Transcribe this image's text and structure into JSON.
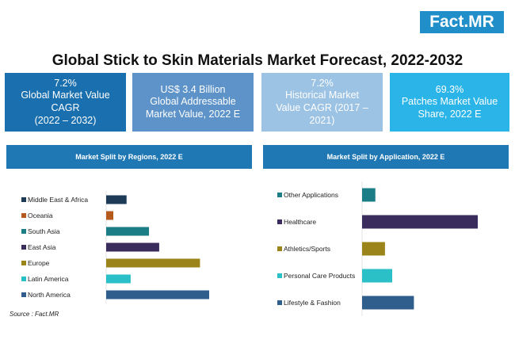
{
  "logo": "Fact.MR",
  "title": "Global Stick to Skin Materials Market Forecast, 2022-2032",
  "kpis": [
    {
      "value": "7.2%",
      "line1": "Global Market Value",
      "line2": "CAGR",
      "line3": "(2022 – 2032)",
      "color": "#1a6fae"
    },
    {
      "value": "US$ 3.4 Billion",
      "line1": "Global Addressable",
      "line2": "Market Value, 2022 E",
      "line3": "",
      "color": "#5e93c9"
    },
    {
      "value": "7.2%",
      "line1": "Historical Market",
      "line2": "Value CAGR (2017 –",
      "line3": "2021)",
      "color": "#9cc3e4"
    },
    {
      "value": "69.3%",
      "line1": "Patches Market Value",
      "line2": "Share,  2022 E",
      "line3": "",
      "color": "#2bb4e8"
    }
  ],
  "source": "Source : Fact.MR",
  "chart_data": [
    {
      "type": "bar",
      "title": "Market Split by Regions, 2022 E",
      "orientation": "horizontal",
      "categories": [
        "Middle East & Africa",
        "Oceania",
        "South Asia",
        "East Asia",
        "Europe",
        "Latin America",
        "North America"
      ],
      "values": [
        10,
        3.5,
        21,
        26,
        46,
        12,
        50.5
      ],
      "colors": [
        "#1d3a57",
        "#b65a1b",
        "#1b7d86",
        "#3b2c5e",
        "#9b851a",
        "#2bbfc7",
        "#2f5d8c"
      ],
      "xlim": [
        0,
        60
      ],
      "grid": false
    },
    {
      "type": "bar",
      "title": "Market Split by Application, 2022 E",
      "orientation": "horizontal",
      "categories": [
        "Other Applications",
        "Healthcare",
        "Athletics/Sports",
        "Personal Care Products",
        "Lifestyle & Fashion"
      ],
      "values": [
        5.5,
        48,
        9.5,
        12.5,
        21.5
      ],
      "colors": [
        "#1b7d86",
        "#3b2c5e",
        "#9b851a",
        "#2bbfc7",
        "#2f5d8c"
      ],
      "xlim": [
        0,
        60
      ],
      "grid": false
    }
  ]
}
